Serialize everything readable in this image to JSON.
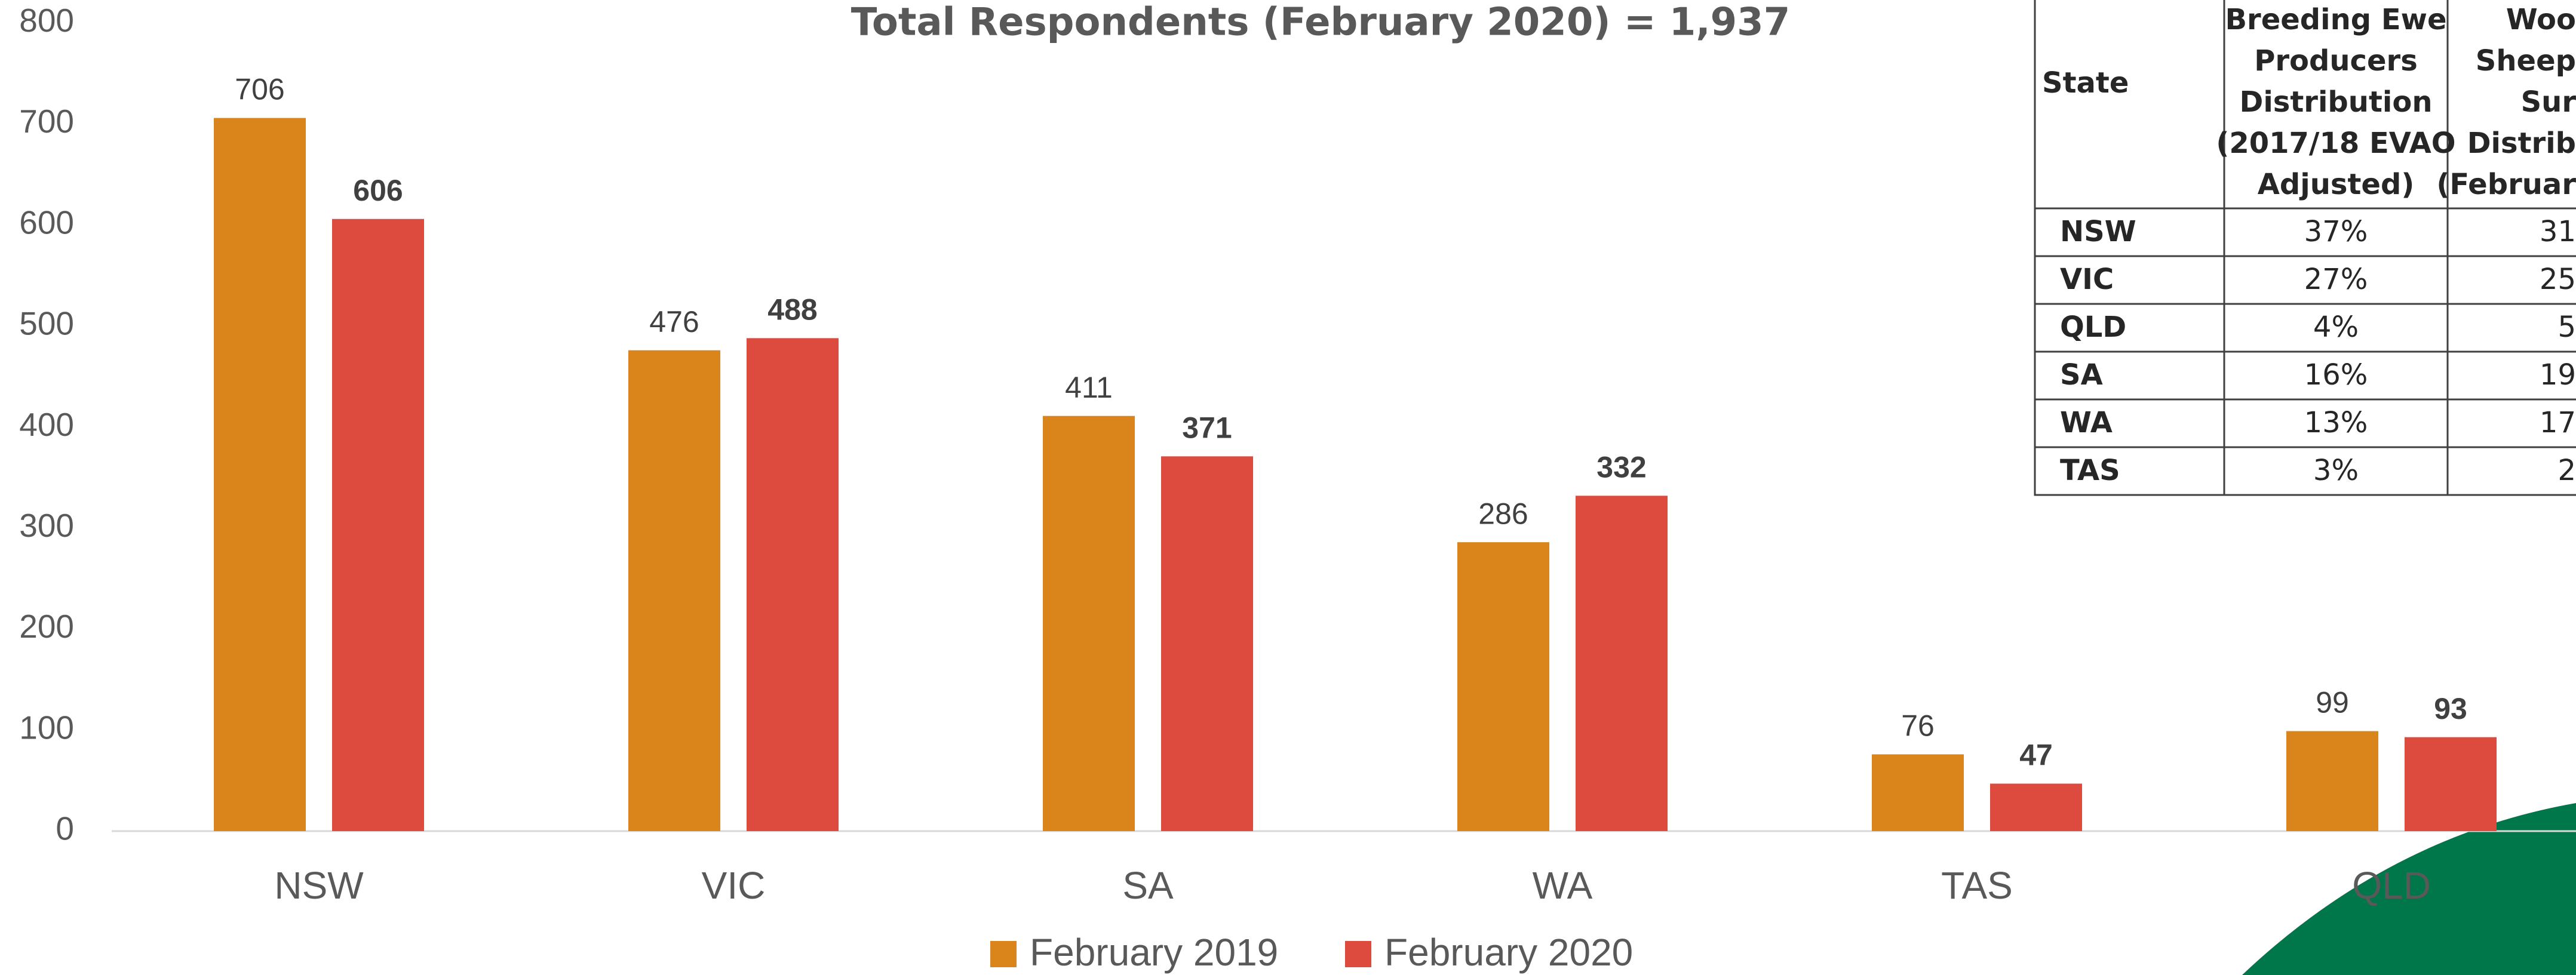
{
  "chart_data": {
    "type": "bar",
    "title": "Total Respondents (February 2020) = 1,937",
    "categories": [
      "NSW",
      "VIC",
      "SA",
      "WA",
      "TAS",
      "QLD"
    ],
    "series": [
      {
        "name": "February 2019",
        "color": "#d9851c",
        "values": [
          706,
          476,
          411,
          286,
          76,
          99
        ]
      },
      {
        "name": "February 2020",
        "color": "#dd4a3e",
        "values": [
          606,
          488,
          371,
          332,
          47,
          93
        ]
      }
    ],
    "ylim": [
      0,
      800
    ],
    "yticks": [
      0,
      100,
      200,
      300,
      400,
      500,
      600,
      700,
      800
    ],
    "grid": false,
    "legend": "bottom"
  },
  "table": {
    "header": [
      [
        "State"
      ],
      [
        "Breeding Ewe",
        "Producers",
        "Distribution",
        "(2017/18 EVAO",
        "Adjusted)"
      ],
      [
        "Woo",
        "Sheep",
        "Sur",
        "Distrib",
        "(Februar"
      ]
    ],
    "rows": [
      [
        "NSW",
        "37%",
        "31"
      ],
      [
        "VIC",
        "27%",
        "25"
      ],
      [
        "QLD",
        "4%",
        "5"
      ],
      [
        "SA",
        "16%",
        "19"
      ],
      [
        "WA",
        "13%",
        "17"
      ],
      [
        "TAS",
        "3%",
        "2"
      ]
    ]
  }
}
